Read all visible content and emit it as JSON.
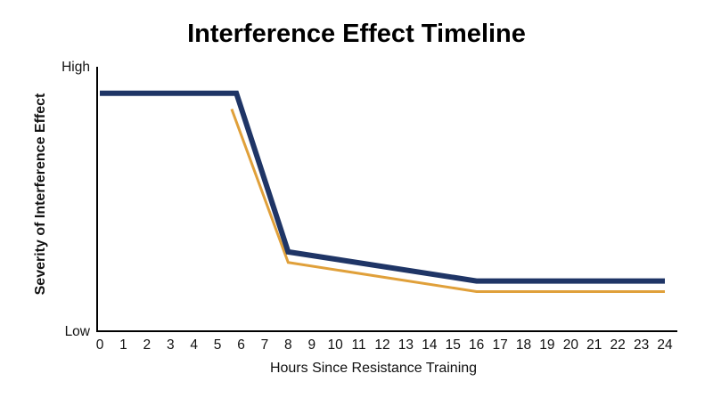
{
  "chart_data": {
    "type": "line",
    "title": "Interference Effect Timeline",
    "xlabel": "Hours Since Resistance Training",
    "ylabel": "Severity of Interference Effect",
    "x_ticks": [
      "0",
      "1",
      "2",
      "3",
      "4",
      "5",
      "6",
      "7",
      "8",
      "9",
      "10",
      "11",
      "12",
      "13",
      "14",
      "15",
      "16",
      "17",
      "18",
      "19",
      "20",
      "21",
      "22",
      "23",
      "24"
    ],
    "xlim": [
      0,
      24
    ],
    "y_ticks": [
      {
        "label": "High",
        "value": 1
      },
      {
        "label": "Low",
        "value": 0
      }
    ],
    "ylim": [
      0,
      1
    ],
    "grid": false,
    "series": [
      {
        "color": "#1f3566",
        "x": [
          0,
          5.8,
          8,
          16,
          24
        ],
        "y": [
          0.9,
          0.9,
          0.3,
          0.19,
          0.19
        ]
      },
      {
        "color": "#e0a03a",
        "x": [
          5.6,
          8,
          16,
          24
        ],
        "y": [
          0.84,
          0.26,
          0.15,
          0.15
        ]
      }
    ]
  }
}
